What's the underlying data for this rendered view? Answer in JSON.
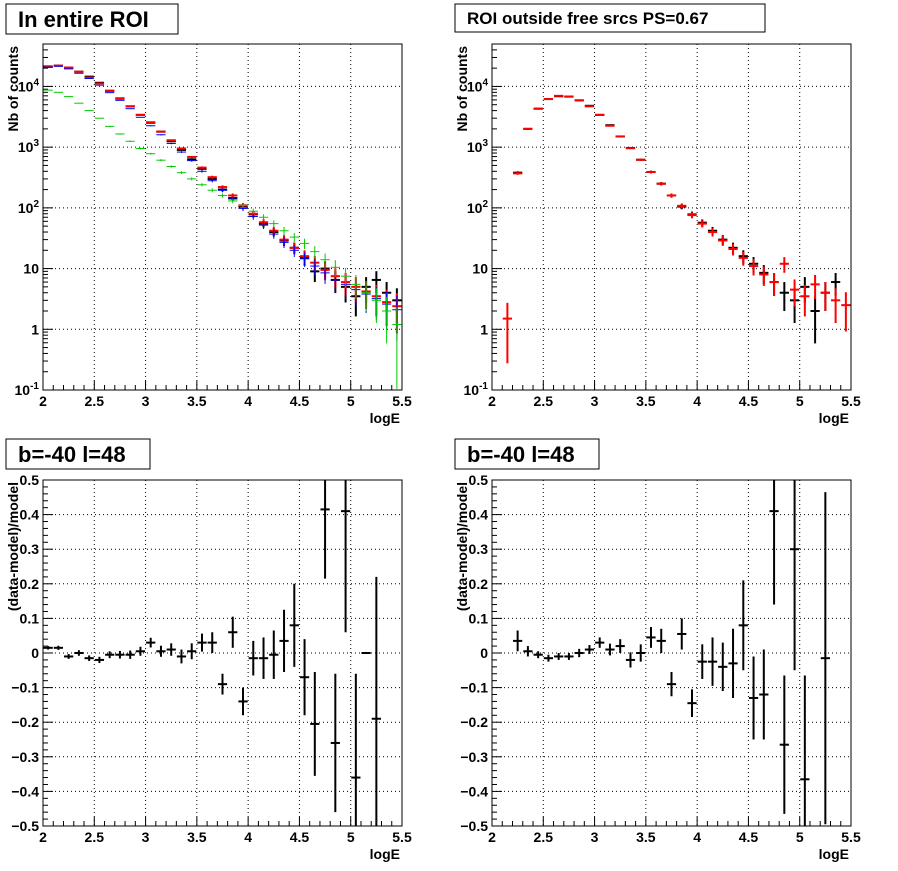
{
  "chart_data": [
    {
      "type": "scatter",
      "title": "In entire ROI",
      "xlabel": "logE",
      "ylabel": "Nb of counts",
      "xlim": [
        2,
        5.5
      ],
      "ylim": [
        0.1,
        50000
      ],
      "log_y": true,
      "grid": true,
      "x_ticks": [
        "2",
        "2.5",
        "3",
        "3.5",
        "4",
        "4.5",
        "5",
        "5.5"
      ],
      "y_ticks": [
        "10^-1",
        "1",
        "10",
        "10^2",
        "10^3",
        "10^4"
      ],
      "series": [
        {
          "color": "#000000",
          "x": [
            2.05,
            2.15,
            2.25,
            2.35,
            2.45,
            2.55,
            2.65,
            2.75,
            2.85,
            2.95,
            3.05,
            3.15,
            3.25,
            3.35,
            3.45,
            3.55,
            3.65,
            3.75,
            3.85,
            3.95,
            4.05,
            4.15,
            4.25,
            4.35,
            4.45,
            4.55,
            4.65,
            4.75,
            4.85,
            4.95,
            5.05,
            5.15,
            5.25,
            5.35,
            5.45
          ],
          "y": [
            21000,
            22000,
            20000,
            17500,
            14500,
            11500,
            8500,
            6300,
            4700,
            3400,
            2550,
            1800,
            1250,
            900,
            630,
            440,
            300,
            200,
            145,
            105,
            78,
            55,
            40,
            29,
            22,
            15,
            9,
            10,
            6.5,
            5,
            3.5,
            5,
            6.5,
            4,
            3
          ],
          "errors": true
        },
        {
          "color": "#ff0000",
          "x": [
            2.05,
            2.15,
            2.25,
            2.35,
            2.45,
            2.55,
            2.65,
            2.75,
            2.85,
            2.95,
            3.05,
            3.15,
            3.25,
            3.35,
            3.45,
            3.55,
            3.65,
            3.75,
            3.85,
            3.95,
            4.05,
            4.15,
            4.25,
            4.35,
            4.45,
            4.55,
            4.65,
            4.75,
            4.85,
            4.95,
            5.05,
            5.15,
            5.25,
            5.35,
            5.45
          ],
          "y": [
            21500,
            22000,
            20500,
            17500,
            14000,
            11200,
            8400,
            6400,
            4700,
            3400,
            2500,
            1800,
            1300,
            950,
            690,
            460,
            320,
            220,
            160,
            110,
            80,
            58,
            42,
            30,
            22,
            16,
            12.5,
            9.5,
            7.5,
            6,
            5,
            4.2,
            3.5,
            2.8,
            2.4
          ],
          "errors": true
        },
        {
          "color": "#0000ff",
          "x": [
            2.05,
            2.15,
            2.25,
            2.35,
            2.45,
            2.55,
            2.65,
            2.75,
            2.85,
            2.95,
            3.05,
            3.15,
            3.25,
            3.35,
            3.45,
            3.55,
            3.65,
            3.75,
            3.85,
            3.95,
            4.05,
            4.15,
            4.25,
            4.35,
            4.45,
            4.55,
            4.65,
            4.75,
            4.85,
            4.95,
            5.05,
            5.15,
            5.25,
            5.35,
            5.45
          ],
          "y": [
            20800,
            21500,
            19500,
            16500,
            13500,
            10500,
            7900,
            5900,
            4300,
            3100,
            2250,
            1600,
            1150,
            830,
            600,
            400,
            280,
            195,
            140,
            98,
            72,
            52,
            37,
            27,
            20,
            14.5,
            11,
            8.5,
            6.5,
            5.5,
            4.5,
            3.8,
            3.2,
            2.6,
            2.1
          ],
          "errors": true
        },
        {
          "color": "#00cc00",
          "x": [
            2.05,
            2.15,
            2.25,
            2.35,
            2.45,
            2.55,
            2.65,
            2.75,
            2.85,
            2.95,
            3.05,
            3.15,
            3.25,
            3.35,
            3.45,
            3.55,
            3.65,
            3.75,
            3.85,
            3.95,
            4.05,
            4.15,
            4.25,
            4.35,
            4.45,
            4.55,
            4.65,
            4.75,
            4.85,
            4.95,
            5.05,
            5.15,
            5.25,
            5.35,
            5.45
          ],
          "y": [
            8700,
            8000,
            6800,
            5300,
            4000,
            3000,
            2200,
            1650,
            1250,
            950,
            780,
            610,
            480,
            380,
            300,
            240,
            195,
            160,
            130,
            110,
            88,
            70,
            55,
            42,
            33,
            26,
            19,
            14,
            10.5,
            7.5,
            5.5,
            4,
            3,
            2,
            1.2
          ],
          "errors": true
        }
      ]
    },
    {
      "type": "scatter",
      "title": "ROI outside free srcs PS=0.67",
      "xlabel": "logE",
      "ylabel": "Nb of counts",
      "xlim": [
        2,
        5.5
      ],
      "ylim": [
        0.1,
        50000
      ],
      "log_y": true,
      "grid": true,
      "x_ticks": [
        "2",
        "2.5",
        "3",
        "3.5",
        "4",
        "4.5",
        "5",
        "5.5"
      ],
      "y_ticks": [
        "10^-1",
        "1",
        "10",
        "10^2",
        "10^3",
        "10^4"
      ],
      "series": [
        {
          "color": "#000000",
          "x": [
            2.25,
            2.35,
            2.45,
            2.55,
            2.65,
            2.75,
            2.85,
            2.95,
            3.05,
            3.15,
            3.25,
            3.35,
            3.45,
            3.55,
            3.65,
            3.75,
            3.85,
            3.95,
            4.05,
            4.15,
            4.25,
            4.35,
            4.45,
            4.55,
            4.65,
            4.75,
            4.85,
            4.95,
            5.05,
            5.15,
            5.25,
            5.35
          ],
          "y": [
            380,
            2000,
            4300,
            6200,
            6900,
            6800,
            5900,
            4800,
            3400,
            2300,
            1500,
            970,
            620,
            390,
            250,
            160,
            105,
            78,
            57,
            42,
            30,
            22,
            16,
            12,
            8.5,
            6,
            4,
            3,
            5,
            2,
            4,
            6
          ],
          "errors": true
        },
        {
          "color": "#ff0000",
          "x": [
            2.15,
            2.25,
            2.35,
            2.45,
            2.55,
            2.65,
            2.75,
            2.85,
            2.95,
            3.05,
            3.15,
            3.25,
            3.35,
            3.45,
            3.55,
            3.65,
            3.75,
            3.85,
            3.95,
            4.05,
            4.15,
            4.25,
            4.35,
            4.45,
            4.55,
            4.65,
            4.75,
            4.85,
            4.95,
            5.05,
            5.15,
            5.25,
            5.35,
            5.45
          ],
          "y": [
            1.5,
            370,
            2000,
            4300,
            6200,
            7000,
            6800,
            5900,
            4700,
            3400,
            2250,
            1500,
            960,
            620,
            390,
            250,
            160,
            108,
            76,
            55,
            40,
            29,
            21,
            15,
            11,
            8,
            6,
            12,
            4.5,
            3.5,
            5.5,
            4,
            3,
            2.5
          ],
          "errors": true
        }
      ]
    },
    {
      "type": "scatter",
      "title": "b=-40 l=48",
      "xlabel": "logE",
      "ylabel": "(data-model)/model",
      "xlim": [
        2,
        5.5
      ],
      "ylim": [
        -0.5,
        0.5
      ],
      "grid": true,
      "x_ticks": [
        "2",
        "2.5",
        "3",
        "3.5",
        "4",
        "4.5",
        "5",
        "5.5"
      ],
      "y_ticks": [
        "-0.5",
        "-0.4",
        "-0.3",
        "-0.2",
        "-0.1",
        "0",
        "0.1",
        "0.2",
        "0.3",
        "0.4",
        "0.5"
      ],
      "series": [
        {
          "color": "#000000",
          "x": [
            2.05,
            2.15,
            2.25,
            2.35,
            2.45,
            2.55,
            2.65,
            2.75,
            2.85,
            2.95,
            3.05,
            3.15,
            3.25,
            3.35,
            3.45,
            3.55,
            3.65,
            3.75,
            3.85,
            3.95,
            4.05,
            4.15,
            4.25,
            4.35,
            4.45,
            4.55,
            4.65,
            4.75,
            4.85,
            4.95,
            5.05,
            5.15,
            5.25
          ],
          "y": [
            0.015,
            0.015,
            -0.01,
            0.0,
            -0.015,
            -0.02,
            -0.005,
            -0.005,
            -0.005,
            0.005,
            0.03,
            0.005,
            0.01,
            -0.01,
            0.005,
            0.03,
            0.03,
            -0.09,
            0.06,
            -0.14,
            -0.015,
            -0.015,
            -0.005,
            0.035,
            0.08,
            -0.07,
            -0.205,
            0.415,
            -0.26,
            0.41,
            -0.36,
            0.0,
            -0.19
          ],
          "err": [
            0.005,
            0.006,
            0.007,
            0.008,
            0.008,
            0.009,
            0.01,
            0.011,
            0.012,
            0.013,
            0.014,
            0.016,
            0.018,
            0.02,
            0.023,
            0.026,
            0.03,
            0.03,
            0.045,
            0.04,
            0.05,
            0.06,
            0.07,
            0.09,
            0.12,
            0.11,
            0.15,
            0.2,
            0.2,
            0.35,
            0.3,
            0,
            0.41
          ]
        }
      ]
    },
    {
      "type": "scatter",
      "title": "b=-40 l=48",
      "xlabel": "logE",
      "ylabel": "(data-model)/model",
      "xlim": [
        2,
        5.5
      ],
      "ylim": [
        -0.5,
        0.5
      ],
      "grid": true,
      "x_ticks": [
        "2",
        "2.5",
        "3",
        "3.5",
        "4",
        "4.5",
        "5",
        "5.5"
      ],
      "y_ticks": [
        "-0.5",
        "-0.4",
        "-0.3",
        "-0.2",
        "-0.1",
        "0",
        "0.1",
        "0.2",
        "0.3",
        "0.4",
        "0.5"
      ],
      "series": [
        {
          "color": "#000000",
          "x": [
            2.25,
            2.35,
            2.45,
            2.55,
            2.65,
            2.75,
            2.85,
            2.95,
            3.05,
            3.15,
            3.25,
            3.35,
            3.45,
            3.55,
            3.65,
            3.75,
            3.85,
            3.95,
            4.05,
            4.15,
            4.25,
            4.35,
            4.45,
            4.55,
            4.65,
            4.75,
            4.85,
            4.95,
            5.05,
            5.25
          ],
          "y": [
            0.035,
            0.005,
            -0.005,
            -0.015,
            -0.01,
            -0.01,
            0.0,
            0.01,
            0.03,
            0.01,
            0.02,
            -0.02,
            0.0,
            0.045,
            0.035,
            -0.09,
            0.055,
            -0.145,
            -0.025,
            -0.025,
            -0.04,
            -0.03,
            0.08,
            -0.13,
            -0.12,
            0.41,
            -0.265,
            0.3,
            -0.365,
            -0.015
          ],
          "err": [
            0.03,
            0.015,
            0.01,
            0.01,
            0.01,
            0.01,
            0.012,
            0.013,
            0.015,
            0.017,
            0.02,
            0.022,
            0.025,
            0.03,
            0.035,
            0.035,
            0.045,
            0.04,
            0.05,
            0.07,
            0.07,
            0.1,
            0.13,
            0.12,
            0.13,
            0.27,
            0.2,
            0.35,
            0.3,
            0.48
          ]
        }
      ]
    }
  ]
}
